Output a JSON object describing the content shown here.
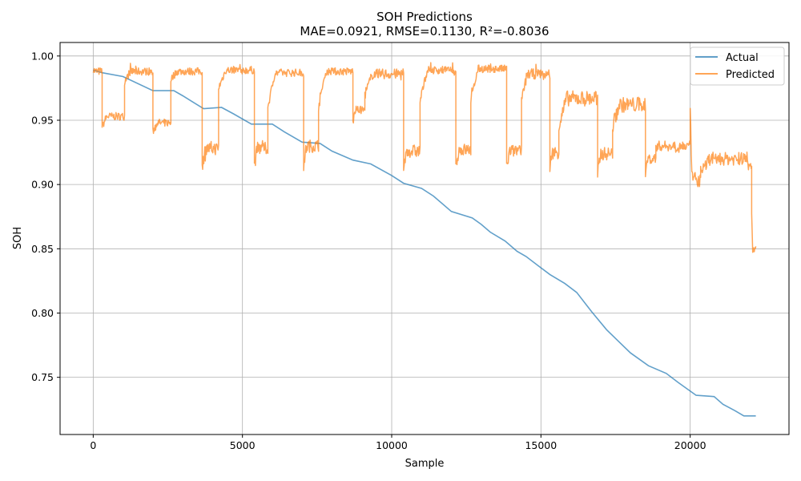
{
  "chart_data": {
    "type": "line",
    "title": "SOH Predictions",
    "subtitle": "MAE=0.0921, RMSE=0.1130, R²=-0.8036",
    "xlabel": "Sample",
    "ylabel": "SOH",
    "xlim": [
      -1110,
      23310
    ],
    "ylim": [
      0.7055,
      1.0105
    ],
    "xticks": [
      0,
      5000,
      10000,
      15000,
      20000
    ],
    "yticks": [
      0.75,
      0.8,
      0.85,
      0.9,
      0.95,
      1.0
    ],
    "xtick_labels": [
      "0",
      "5000",
      "10000",
      "15000",
      "20000"
    ],
    "ytick_labels": [
      "0.75",
      "0.80",
      "0.85",
      "0.90",
      "0.95",
      "1.00"
    ],
    "grid": true,
    "legend_position": "top-right",
    "series": [
      {
        "name": "Actual",
        "color": "#1f77b4",
        "x": [
          0,
          300,
          1000,
          2000,
          2700,
          3000,
          3700,
          4300,
          4700,
          5300,
          6000,
          6400,
          7000,
          7600,
          8000,
          8700,
          9300,
          10000,
          10400,
          11000,
          11400,
          12000,
          12700,
          13000,
          13300,
          13800,
          14200,
          14500,
          14900,
          15300,
          15800,
          16200,
          16700,
          17200,
          17600,
          18000,
          18600,
          19200,
          19600,
          20200,
          20800,
          21100,
          21500,
          21800,
          22200
        ],
        "y": [
          0.989,
          0.987,
          0.984,
          0.973,
          0.973,
          0.969,
          0.959,
          0.96,
          0.955,
          0.947,
          0.947,
          0.941,
          0.933,
          0.932,
          0.926,
          0.919,
          0.916,
          0.907,
          0.901,
          0.897,
          0.891,
          0.879,
          0.874,
          0.869,
          0.863,
          0.856,
          0.848,
          0.844,
          0.837,
          0.83,
          0.823,
          0.816,
          0.801,
          0.787,
          0.778,
          0.769,
          0.759,
          0.753,
          0.746,
          0.736,
          0.735,
          0.729,
          0.724,
          0.72,
          0.72
        ]
      },
      {
        "name": "Predicted",
        "color": "#ff7f0e",
        "segments": [
          {
            "x0": 0,
            "x1": 300,
            "level": 0.988,
            "amp": 0.003,
            "start": 0.99
          },
          {
            "x0": 300,
            "x1": 1050,
            "level": 0.953,
            "amp": 0.003,
            "start": 0.945
          },
          {
            "x0": 1050,
            "x1": 2000,
            "level": 0.988,
            "amp": 0.003,
            "start": 0.98
          },
          {
            "x0": 2000,
            "x1": 2600,
            "level": 0.948,
            "amp": 0.003,
            "start": 0.941
          },
          {
            "x0": 2600,
            "x1": 3650,
            "level": 0.988,
            "amp": 0.003,
            "start": 0.982
          },
          {
            "x0": 3650,
            "x1": 4200,
            "level": 0.928,
            "amp": 0.005,
            "start": 0.914
          },
          {
            "x0": 4200,
            "x1": 5400,
            "level": 0.989,
            "amp": 0.003,
            "start": 0.975
          },
          {
            "x0": 5400,
            "x1": 5850,
            "level": 0.928,
            "amp": 0.005,
            "start": 0.914
          },
          {
            "x0": 5850,
            "x1": 7050,
            "level": 0.987,
            "amp": 0.003,
            "start": 0.96
          },
          {
            "x0": 7050,
            "x1": 7550,
            "level": 0.93,
            "amp": 0.005,
            "start": 0.916
          },
          {
            "x0": 7550,
            "x1": 8700,
            "level": 0.988,
            "amp": 0.003,
            "start": 0.96
          },
          {
            "x0": 8700,
            "x1": 9100,
            "level": 0.958,
            "amp": 0.003,
            "start": 0.948
          },
          {
            "x0": 9100,
            "x1": 10400,
            "level": 0.986,
            "amp": 0.004,
            "start": 0.97
          },
          {
            "x0": 10400,
            "x1": 10950,
            "level": 0.926,
            "amp": 0.005,
            "start": 0.914
          },
          {
            "x0": 10950,
            "x1": 12150,
            "level": 0.989,
            "amp": 0.003,
            "start": 0.965
          },
          {
            "x0": 12150,
            "x1": 12650,
            "level": 0.927,
            "amp": 0.005,
            "start": 0.914
          },
          {
            "x0": 12650,
            "x1": 13850,
            "level": 0.99,
            "amp": 0.003,
            "start": 0.965
          },
          {
            "x0": 13850,
            "x1": 14350,
            "level": 0.926,
            "amp": 0.005,
            "start": 0.913
          },
          {
            "x0": 14350,
            "x1": 15300,
            "level": 0.986,
            "amp": 0.004,
            "start": 0.965
          },
          {
            "x0": 15300,
            "x1": 15600,
            "level": 0.925,
            "amp": 0.005,
            "start": 0.909
          },
          {
            "x0": 15600,
            "x1": 16900,
            "level": 0.967,
            "amp": 0.006,
            "start": 0.945
          },
          {
            "x0": 16900,
            "x1": 17400,
            "level": 0.924,
            "amp": 0.005,
            "start": 0.91
          },
          {
            "x0": 17400,
            "x1": 18500,
            "level": 0.962,
            "amp": 0.006,
            "start": 0.945
          },
          {
            "x0": 18500,
            "x1": 18850,
            "level": 0.92,
            "amp": 0.004,
            "start": 0.908
          },
          {
            "x0": 18850,
            "x1": 20000,
            "level": 0.93,
            "amp": 0.004,
            "start": 0.93
          },
          {
            "x0": 20000,
            "x1": 20350,
            "level": 0.904,
            "amp": 0.006,
            "start": 0.955
          },
          {
            "x0": 20350,
            "x1": 21900,
            "level": 0.92,
            "amp": 0.005,
            "start": 0.912
          },
          {
            "x0": 21900,
            "x1": 22060,
            "level": 0.915,
            "amp": 0.004,
            "start": 0.927
          },
          {
            "x0": 22060,
            "x1": 22200,
            "level": 0.85,
            "amp": 0.003,
            "start": 0.88
          }
        ]
      }
    ]
  }
}
